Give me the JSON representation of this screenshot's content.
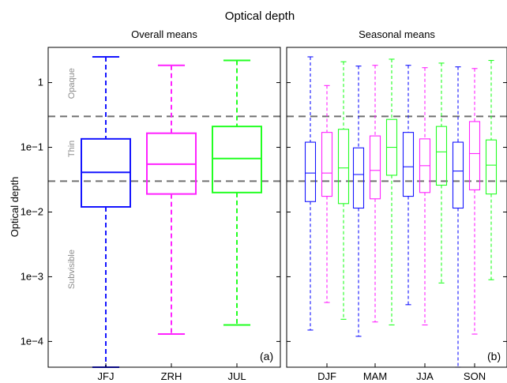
{
  "chart_data": {
    "type": "boxplot",
    "title": "Optical depth",
    "ylabel": "Optical depth",
    "yscale": "log",
    "ylim": [
      4e-05,
      3.5
    ],
    "yticks": [
      {
        "value": 0.0001,
        "label": "1e−4"
      },
      {
        "value": 0.001,
        "label": "1e−3"
      },
      {
        "value": 0.01,
        "label": "1e−2"
      },
      {
        "value": 0.1,
        "label": "1e−1"
      },
      {
        "value": 1,
        "label": "1"
      }
    ],
    "thresholds": [
      0.03,
      0.3
    ],
    "regions": [
      "Opaque",
      "Thin",
      "Subvisible"
    ],
    "station_colors": {
      "JFJ": "#1515ff",
      "ZRH": "#ff22ff",
      "JUL": "#22ff22"
    },
    "threshold_color": "#707070",
    "region_text_color": "#8c8c8c",
    "panels": [
      {
        "subtitle": "Overall means",
        "label": "(a)",
        "categories": [
          "JFJ",
          "ZRH",
          "JUL"
        ],
        "boxes": [
          {
            "group": "JFJ",
            "station": "JFJ",
            "whisker_low": 4e-05,
            "q1": 0.012,
            "median": 0.041,
            "q3": 0.135,
            "whisker_high": 2.5
          },
          {
            "group": "ZRH",
            "station": "ZRH",
            "whisker_low": 0.00013,
            "q1": 0.019,
            "median": 0.055,
            "q3": 0.165,
            "whisker_high": 1.85
          },
          {
            "group": "JUL",
            "station": "JUL",
            "whisker_low": 0.00018,
            "q1": 0.02,
            "median": 0.067,
            "q3": 0.21,
            "whisker_high": 2.2
          }
        ]
      },
      {
        "subtitle": "Seasonal means",
        "label": "(b)",
        "categories": [
          "DJF",
          "MAM",
          "JJA",
          "SON"
        ],
        "boxes": [
          {
            "group": "DJF",
            "station": "JFJ",
            "whisker_low": 0.00015,
            "q1": 0.0145,
            "median": 0.04,
            "q3": 0.12,
            "whisker_high": 2.5
          },
          {
            "group": "DJF",
            "station": "ZRH",
            "whisker_low": 0.0004,
            "q1": 0.0175,
            "median": 0.04,
            "q3": 0.17,
            "whisker_high": 0.9
          },
          {
            "group": "DJF",
            "station": "JUL",
            "whisker_low": 0.00022,
            "q1": 0.0135,
            "median": 0.048,
            "q3": 0.19,
            "whisker_high": 2.1
          },
          {
            "group": "MAM",
            "station": "JFJ",
            "whisker_low": 0.00012,
            "q1": 0.0115,
            "median": 0.038,
            "q3": 0.098,
            "whisker_high": 1.8
          },
          {
            "group": "MAM",
            "station": "ZRH",
            "whisker_low": 0.0002,
            "q1": 0.016,
            "median": 0.044,
            "q3": 0.15,
            "whisker_high": 1.85
          },
          {
            "group": "MAM",
            "station": "JUL",
            "whisker_low": 0.00018,
            "q1": 0.037,
            "median": 0.1,
            "q3": 0.27,
            "whisker_high": 2.3
          },
          {
            "group": "JJA",
            "station": "JFJ",
            "whisker_low": 0.00037,
            "q1": 0.0175,
            "median": 0.05,
            "q3": 0.17,
            "whisker_high": 1.85
          },
          {
            "group": "JJA",
            "station": "ZRH",
            "whisker_low": 0.00018,
            "q1": 0.02,
            "median": 0.052,
            "q3": 0.135,
            "whisker_high": 1.7
          },
          {
            "group": "JJA",
            "station": "JUL",
            "whisker_low": 0.0008,
            "q1": 0.026,
            "median": 0.085,
            "q3": 0.21,
            "whisker_high": 2.0
          },
          {
            "group": "SON",
            "station": "JFJ",
            "whisker_low": 4e-05,
            "q1": 0.0115,
            "median": 0.043,
            "q3": 0.12,
            "whisker_high": 1.75
          },
          {
            "group": "SON",
            "station": "ZRH",
            "whisker_low": 0.00013,
            "q1": 0.022,
            "median": 0.08,
            "q3": 0.25,
            "whisker_high": 1.65
          },
          {
            "group": "SON",
            "station": "JUL",
            "whisker_low": 0.0009,
            "q1": 0.019,
            "median": 0.053,
            "q3": 0.13,
            "whisker_high": 2.2
          }
        ]
      }
    ]
  }
}
